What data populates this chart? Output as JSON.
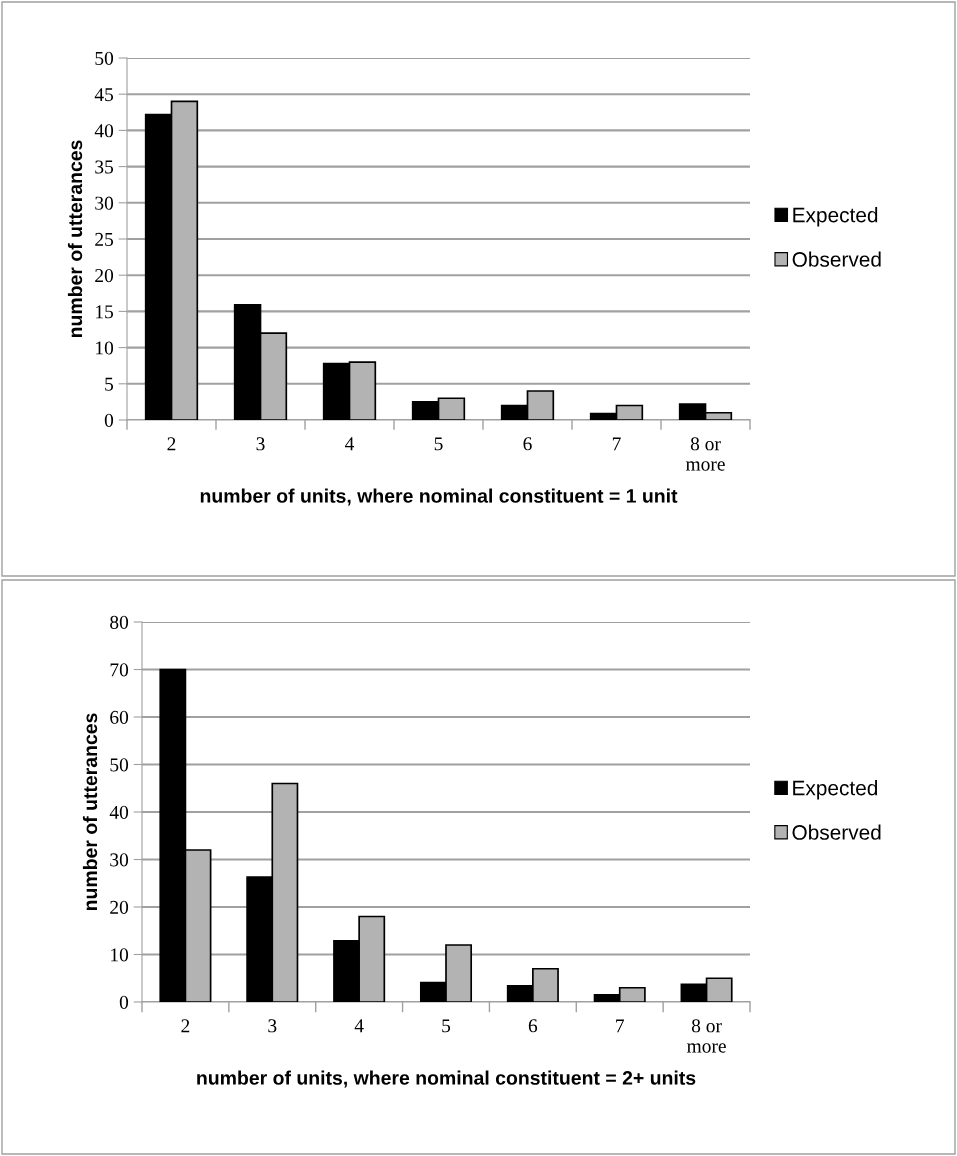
{
  "chart_data": [
    {
      "type": "bar",
      "xlabel": "number of units, where nominal constituent = 1 unit",
      "ylabel": "number of utterances",
      "categories": [
        "2",
        "3",
        "4",
        "5",
        "6",
        "7",
        "8 or\nmore"
      ],
      "series": [
        {
          "name": "Expected",
          "color": "#000000",
          "values": [
            42.2,
            15.9,
            7.8,
            2.5,
            2.0,
            0.9,
            2.2
          ]
        },
        {
          "name": "Observed",
          "color": "#b3b3b3",
          "values": [
            44,
            12,
            8,
            3,
            4,
            2,
            1
          ]
        }
      ],
      "ylim": [
        0,
        50
      ],
      "yticks": [
        0,
        5,
        10,
        15,
        20,
        25,
        30,
        35,
        40,
        45,
        50
      ],
      "grid": "y",
      "legend": "right"
    },
    {
      "type": "bar",
      "xlabel": "number of units, where nominal constituent = 2+ units",
      "ylabel": "number of utterances",
      "categories": [
        "2",
        "3",
        "4",
        "5",
        "6",
        "7",
        "8 or\nmore"
      ],
      "series": [
        {
          "name": "Expected",
          "color": "#000000",
          "values": [
            70,
            26.3,
            12.9,
            4.1,
            3.4,
            1.5,
            3.7
          ]
        },
        {
          "name": "Observed",
          "color": "#b3b3b3",
          "values": [
            32,
            46,
            18,
            12,
            7,
            3,
            5
          ]
        }
      ],
      "ylim": [
        0,
        80
      ],
      "yticks": [
        0,
        10,
        20,
        30,
        40,
        50,
        60,
        70,
        80
      ],
      "grid": "y",
      "legend": "right"
    }
  ]
}
